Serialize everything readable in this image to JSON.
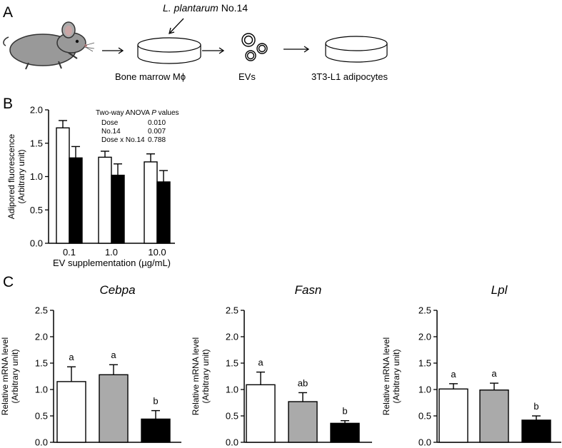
{
  "panel_a": {
    "letter": "A",
    "strain_name": "L. plantarum",
    "strain_number": " No.14",
    "step_labels": [
      "Bone marrow Mϕ",
      "EVs",
      "3T3-L1 adipocytes"
    ],
    "icons": [
      "mouse-icon",
      "petri-dish-icon",
      "vesicles-icon",
      "arrow-right-icon"
    ]
  },
  "panel_b": {
    "letter": "B"
  },
  "panel_c": {
    "letter": "C"
  },
  "chart_data": [
    {
      "type": "bar",
      "categories": [
        "0.1",
        "1.0",
        "10.0"
      ],
      "series": [
        {
          "color": "#ffffff",
          "values": [
            1.73,
            1.29,
            1.22
          ],
          "errors": [
            0.11,
            0.09,
            0.12
          ]
        },
        {
          "color": "#000000",
          "values": [
            1.28,
            1.02,
            0.92
          ],
          "errors": [
            0.17,
            0.17,
            0.17
          ]
        }
      ],
      "xlabel": "EV supplementation (µg/mL)",
      "ylabel": [
        "Adipored fluorescence",
        "(Arbitrary unit)"
      ],
      "ylim": [
        0,
        2.0
      ],
      "yticks": [
        "0.0",
        "0.5",
        "1.0",
        "1.5",
        "2.0"
      ],
      "annotation": {
        "title": "Two-way ANOVA ",
        "title_italic": "P",
        "title_end": " values",
        "rows": [
          {
            "term": "Dose",
            "value": "0.010"
          },
          {
            "term": "No.14",
            "value": "0.007"
          },
          {
            "term": "Dose x No.14",
            "value": "0.788"
          }
        ]
      }
    },
    {
      "type": "bar",
      "title": "Cebpa",
      "bar_colors": [
        "#ffffff",
        "#aaaaaa",
        "#000000"
      ],
      "values": [
        1.15,
        1.28,
        0.44
      ],
      "errors": [
        0.28,
        0.19,
        0.16
      ],
      "letters": [
        "a",
        "a",
        "b"
      ],
      "ylabel": [
        "Relative mRNA level",
        "(Arbitrary unit)"
      ],
      "ylim": [
        0,
        2.5
      ],
      "yticks": [
        "0.0",
        "0.5",
        "1.0",
        "1.5",
        "2.0",
        "2.5"
      ]
    },
    {
      "type": "bar",
      "title": "Fasn",
      "bar_colors": [
        "#ffffff",
        "#aaaaaa",
        "#000000"
      ],
      "values": [
        1.09,
        0.77,
        0.36
      ],
      "errors": [
        0.24,
        0.17,
        0.05
      ],
      "letters": [
        "a",
        "ab",
        "b"
      ],
      "ylabel": [
        "Relative mRNA level",
        "(Arbitrary unit)"
      ],
      "ylim": [
        0,
        2.5
      ],
      "yticks": [
        "0.0",
        "0.5",
        "1.0",
        "1.5",
        "2.0",
        "2.5"
      ]
    },
    {
      "type": "bar",
      "title": "Lpl",
      "bar_colors": [
        "#ffffff",
        "#aaaaaa",
        "#000000"
      ],
      "values": [
        1.01,
        0.99,
        0.42
      ],
      "errors": [
        0.1,
        0.13,
        0.08
      ],
      "letters": [
        "a",
        "a",
        "b"
      ],
      "ylabel": [
        "Relative mRNA level",
        "(Arbitrary unit)"
      ],
      "ylim": [
        0,
        2.5
      ],
      "yticks": [
        "0.0",
        "0.5",
        "1.0",
        "1.5",
        "2.0",
        "2.5"
      ]
    }
  ]
}
